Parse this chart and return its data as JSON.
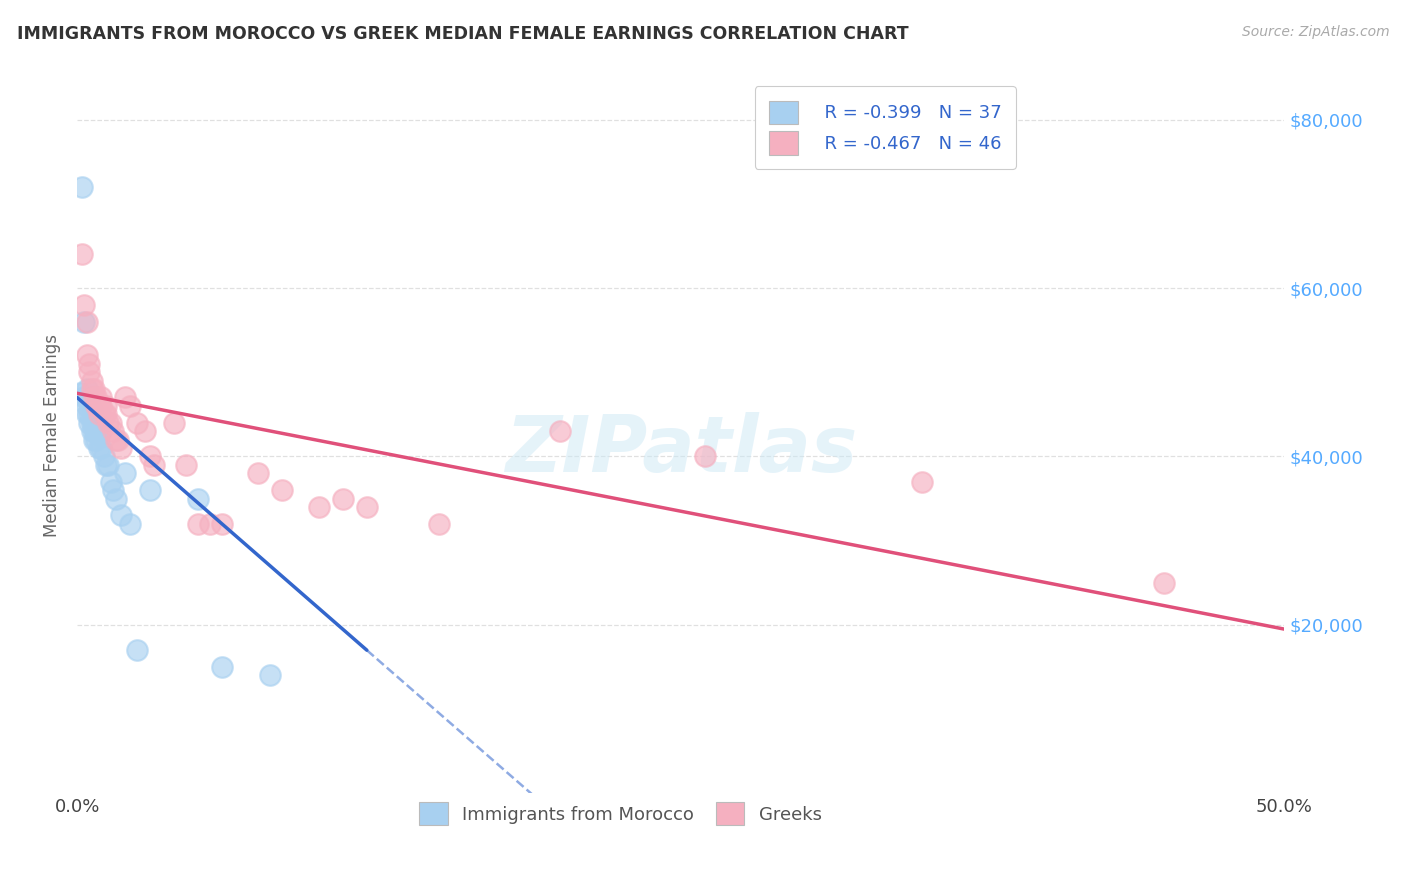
{
  "title": "IMMIGRANTS FROM MOROCCO VS GREEK MEDIAN FEMALE EARNINGS CORRELATION CHART",
  "source": "Source: ZipAtlas.com",
  "ylabel": "Median Female Earnings",
  "legend_label1": "Immigrants from Morocco",
  "legend_label2": "Greeks",
  "r1": -0.399,
  "n1": 37,
  "r2": -0.467,
  "n2": 46,
  "blue_color": "#a8d0f0",
  "pink_color": "#f5b0c0",
  "blue_line_color": "#3366cc",
  "pink_line_color": "#e0507a",
  "blue_scatter": [
    [
      0.001,
      47500
    ],
    [
      0.002,
      72000
    ],
    [
      0.003,
      56000
    ],
    [
      0.003,
      47000
    ],
    [
      0.004,
      48000
    ],
    [
      0.004,
      46000
    ],
    [
      0.004,
      45000
    ],
    [
      0.005,
      46500
    ],
    [
      0.005,
      45000
    ],
    [
      0.005,
      44000
    ],
    [
      0.006,
      45500
    ],
    [
      0.006,
      44000
    ],
    [
      0.006,
      43000
    ],
    [
      0.007,
      44000
    ],
    [
      0.007,
      43000
    ],
    [
      0.007,
      42000
    ],
    [
      0.008,
      44000
    ],
    [
      0.008,
      43000
    ],
    [
      0.008,
      42000
    ],
    [
      0.009,
      42500
    ],
    [
      0.009,
      41000
    ],
    [
      0.01,
      43000
    ],
    [
      0.01,
      41000
    ],
    [
      0.011,
      40000
    ],
    [
      0.012,
      39000
    ],
    [
      0.013,
      39000
    ],
    [
      0.014,
      37000
    ],
    [
      0.015,
      36000
    ],
    [
      0.016,
      35000
    ],
    [
      0.018,
      33000
    ],
    [
      0.02,
      38000
    ],
    [
      0.022,
      32000
    ],
    [
      0.025,
      17000
    ],
    [
      0.03,
      36000
    ],
    [
      0.05,
      35000
    ],
    [
      0.06,
      15000
    ],
    [
      0.08,
      14000
    ]
  ],
  "pink_scatter": [
    [
      0.002,
      64000
    ],
    [
      0.003,
      58000
    ],
    [
      0.004,
      56000
    ],
    [
      0.004,
      52000
    ],
    [
      0.005,
      51000
    ],
    [
      0.005,
      50000
    ],
    [
      0.006,
      49000
    ],
    [
      0.006,
      48000
    ],
    [
      0.007,
      48000
    ],
    [
      0.007,
      47000
    ],
    [
      0.008,
      47000
    ],
    [
      0.008,
      46000
    ],
    [
      0.009,
      46000
    ],
    [
      0.009,
      45000
    ],
    [
      0.01,
      47000
    ],
    [
      0.01,
      46000
    ],
    [
      0.011,
      45000
    ],
    [
      0.012,
      46000
    ],
    [
      0.012,
      45000
    ],
    [
      0.013,
      44000
    ],
    [
      0.014,
      44000
    ],
    [
      0.015,
      43000
    ],
    [
      0.016,
      42000
    ],
    [
      0.017,
      42000
    ],
    [
      0.018,
      41000
    ],
    [
      0.02,
      47000
    ],
    [
      0.022,
      46000
    ],
    [
      0.025,
      44000
    ],
    [
      0.028,
      43000
    ],
    [
      0.03,
      40000
    ],
    [
      0.032,
      39000
    ],
    [
      0.04,
      44000
    ],
    [
      0.045,
      39000
    ],
    [
      0.05,
      32000
    ],
    [
      0.055,
      32000
    ],
    [
      0.06,
      32000
    ],
    [
      0.075,
      38000
    ],
    [
      0.085,
      36000
    ],
    [
      0.1,
      34000
    ],
    [
      0.11,
      35000
    ],
    [
      0.12,
      34000
    ],
    [
      0.15,
      32000
    ],
    [
      0.2,
      43000
    ],
    [
      0.26,
      40000
    ],
    [
      0.35,
      37000
    ],
    [
      0.45,
      25000
    ]
  ],
  "xmin": 0.0,
  "xmax": 0.5,
  "ymin": 0,
  "ymax": 85000,
  "right_yticks": [
    20000,
    40000,
    60000,
    80000
  ],
  "right_ytick_labels": [
    "$20,000",
    "$40,000",
    "$60,000",
    "$80,000"
  ],
  "watermark_text": "ZIPatlas",
  "background_color": "#ffffff",
  "grid_color": "#dddddd",
  "blue_line_intercept": 47000,
  "blue_line_slope": -250000,
  "pink_line_intercept": 47500,
  "pink_line_slope": -56000
}
